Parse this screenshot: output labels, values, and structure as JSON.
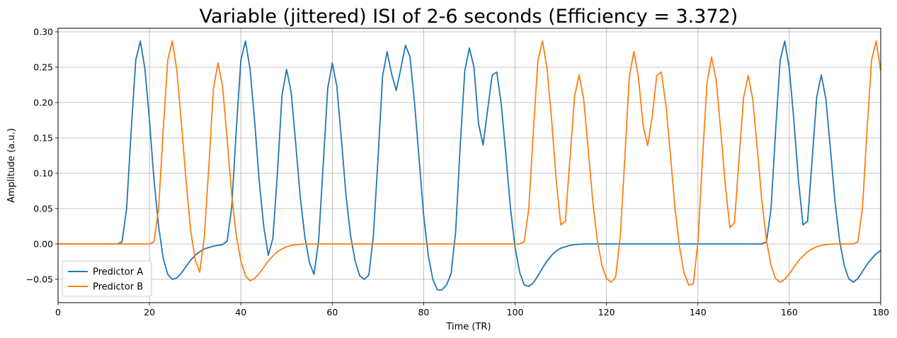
{
  "chart_data": {
    "type": "line",
    "title": "Variable (jittered) ISI of 2-6 seconds (Efficiency = 3.372)",
    "xlabel": "Time (TR)",
    "ylabel": "Amplitude (a.u.)",
    "xlim": [
      0,
      180
    ],
    "ylim": [
      -0.083,
      0.305
    ],
    "xticks": [
      0,
      20,
      40,
      60,
      80,
      100,
      120,
      140,
      160,
      180
    ],
    "yticks": [
      -0.05,
      0.0,
      0.05,
      0.1,
      0.15,
      0.2,
      0.25,
      0.3
    ],
    "ytick_labels": [
      "−0.05",
      "0.00",
      "0.05",
      "0.10",
      "0.15",
      "0.20",
      "0.25",
      "0.30"
    ],
    "grid": true,
    "legend_position": "lower-left",
    "series": [
      {
        "name": "Predictor A",
        "color": "#1f77b4",
        "points": [
          [
            0,
            0
          ],
          [
            13,
            0
          ],
          [
            14,
            0.003
          ],
          [
            15,
            0.05
          ],
          [
            16,
            0.16
          ],
          [
            17,
            0.26
          ],
          [
            18,
            0.287
          ],
          [
            19,
            0.248
          ],
          [
            20,
            0.175
          ],
          [
            21,
            0.09
          ],
          [
            22,
            0.025
          ],
          [
            23,
            -0.02
          ],
          [
            24,
            -0.043
          ],
          [
            25,
            -0.05
          ],
          [
            26,
            -0.048
          ],
          [
            27,
            -0.041
          ],
          [
            28,
            -0.032
          ],
          [
            29,
            -0.023
          ],
          [
            30,
            -0.016
          ],
          [
            31,
            -0.011
          ],
          [
            32,
            -0.007
          ],
          [
            33,
            -0.005
          ],
          [
            34,
            -0.003
          ],
          [
            35,
            -0.002
          ],
          [
            36,
            -0.001
          ],
          [
            37,
            0.004
          ],
          [
            38,
            0.052
          ],
          [
            39,
            0.162
          ],
          [
            40,
            0.26
          ],
          [
            41,
            0.287
          ],
          [
            42,
            0.248
          ],
          [
            43,
            0.175
          ],
          [
            44,
            0.09
          ],
          [
            45,
            0.025
          ],
          [
            46,
            -0.016
          ],
          [
            47,
            0.008
          ],
          [
            48,
            0.1
          ],
          [
            49,
            0.21
          ],
          [
            50,
            0.247
          ],
          [
            51,
            0.215
          ],
          [
            52,
            0.142
          ],
          [
            53,
            0.066
          ],
          [
            54,
            0.01
          ],
          [
            55,
            -0.026
          ],
          [
            56,
            -0.043
          ],
          [
            57,
            0.004
          ],
          [
            58,
            0.11
          ],
          [
            59,
            0.22
          ],
          [
            60,
            0.256
          ],
          [
            61,
            0.223
          ],
          [
            62,
            0.148
          ],
          [
            63,
            0.069
          ],
          [
            64,
            0.012
          ],
          [
            65,
            -0.024
          ],
          [
            66,
            -0.045
          ],
          [
            67,
            -0.05
          ],
          [
            68,
            -0.044
          ],
          [
            69,
            0.012
          ],
          [
            70,
            0.12
          ],
          [
            71,
            0.237
          ],
          [
            72,
            0.272
          ],
          [
            73,
            0.24
          ],
          [
            74,
            0.217
          ],
          [
            75,
            0.248
          ],
          [
            76,
            0.281
          ],
          [
            77,
            0.265
          ],
          [
            78,
            0.2
          ],
          [
            79,
            0.12
          ],
          [
            80,
            0.04
          ],
          [
            81,
            -0.016
          ],
          [
            82,
            -0.05
          ],
          [
            83,
            -0.065
          ],
          [
            84,
            -0.065
          ],
          [
            85,
            -0.058
          ],
          [
            86,
            -0.042
          ],
          [
            87,
            0.018
          ],
          [
            88,
            0.14
          ],
          [
            89,
            0.245
          ],
          [
            90,
            0.277
          ],
          [
            91,
            0.25
          ],
          [
            92,
            0.17
          ],
          [
            93,
            0.14
          ],
          [
            94,
            0.19
          ],
          [
            95,
            0.239
          ],
          [
            96,
            0.243
          ],
          [
            97,
            0.196
          ],
          [
            98,
            0.125
          ],
          [
            99,
            0.05
          ],
          [
            100,
            -0.005
          ],
          [
            101,
            -0.04
          ],
          [
            102,
            -0.058
          ],
          [
            103,
            -0.06
          ],
          [
            104,
            -0.055
          ],
          [
            105,
            -0.045
          ],
          [
            106,
            -0.034
          ],
          [
            107,
            -0.024
          ],
          [
            108,
            -0.016
          ],
          [
            109,
            -0.01
          ],
          [
            110,
            -0.006
          ],
          [
            111,
            -0.004
          ],
          [
            112,
            -0.002
          ],
          [
            113,
            -0.001
          ],
          [
            115,
            0
          ],
          [
            154,
            0
          ],
          [
            155,
            0.003
          ],
          [
            156,
            0.05
          ],
          [
            157,
            0.16
          ],
          [
            158,
            0.26
          ],
          [
            159,
            0.287
          ],
          [
            160,
            0.248
          ],
          [
            161,
            0.175
          ],
          [
            162,
            0.09
          ],
          [
            163,
            0.027
          ],
          [
            164,
            0.032
          ],
          [
            165,
            0.12
          ],
          [
            166,
            0.208
          ],
          [
            167,
            0.239
          ],
          [
            168,
            0.205
          ],
          [
            169,
            0.134
          ],
          [
            170,
            0.06
          ],
          [
            171,
            0.005
          ],
          [
            172,
            -0.03
          ],
          [
            173,
            -0.049
          ],
          [
            174,
            -0.054
          ],
          [
            175,
            -0.049
          ],
          [
            176,
            -0.039
          ],
          [
            177,
            -0.029
          ],
          [
            178,
            -0.021
          ],
          [
            179,
            -0.014
          ],
          [
            180,
            -0.009
          ]
        ]
      },
      {
        "name": "Predictor B",
        "color": "#ff7f0e",
        "points": [
          [
            0,
            0
          ],
          [
            20,
            0
          ],
          [
            21,
            0.003
          ],
          [
            22,
            0.05
          ],
          [
            23,
            0.16
          ],
          [
            24,
            0.26
          ],
          [
            25,
            0.287
          ],
          [
            26,
            0.245
          ],
          [
            27,
            0.17
          ],
          [
            28,
            0.09
          ],
          [
            29,
            0.02
          ],
          [
            30,
            -0.022
          ],
          [
            31,
            -0.04
          ],
          [
            32,
            0.01
          ],
          [
            33,
            0.11
          ],
          [
            34,
            0.22
          ],
          [
            35,
            0.256
          ],
          [
            36,
            0.223
          ],
          [
            37,
            0.148
          ],
          [
            38,
            0.069
          ],
          [
            39,
            0.012
          ],
          [
            40,
            -0.024
          ],
          [
            41,
            -0.045
          ],
          [
            42,
            -0.052
          ],
          [
            43,
            -0.049
          ],
          [
            44,
            -0.042
          ],
          [
            45,
            -0.033
          ],
          [
            46,
            -0.024
          ],
          [
            47,
            -0.017
          ],
          [
            48,
            -0.011
          ],
          [
            49,
            -0.007
          ],
          [
            50,
            -0.004
          ],
          [
            51,
            -0.002
          ],
          [
            52,
            -0.001
          ],
          [
            54,
            0
          ],
          [
            101,
            0
          ],
          [
            102,
            0.003
          ],
          [
            103,
            0.05
          ],
          [
            104,
            0.16
          ],
          [
            105,
            0.26
          ],
          [
            106,
            0.287
          ],
          [
            107,
            0.248
          ],
          [
            108,
            0.175
          ],
          [
            109,
            0.09
          ],
          [
            110,
            0.027
          ],
          [
            111,
            0.032
          ],
          [
            112,
            0.12
          ],
          [
            113,
            0.208
          ],
          [
            114,
            0.239
          ],
          [
            115,
            0.205
          ],
          [
            116,
            0.134
          ],
          [
            117,
            0.06
          ],
          [
            118,
            0.005
          ],
          [
            119,
            -0.03
          ],
          [
            120,
            -0.049
          ],
          [
            121,
            -0.054
          ],
          [
            122,
            -0.047
          ],
          [
            123,
            0.01
          ],
          [
            124,
            0.12
          ],
          [
            125,
            0.237
          ],
          [
            126,
            0.272
          ],
          [
            127,
            0.235
          ],
          [
            128,
            0.168
          ],
          [
            129,
            0.139
          ],
          [
            130,
            0.18
          ],
          [
            131,
            0.238
          ],
          [
            132,
            0.243
          ],
          [
            133,
            0.196
          ],
          [
            134,
            0.125
          ],
          [
            135,
            0.05
          ],
          [
            136,
            -0.005
          ],
          [
            137,
            -0.042
          ],
          [
            138,
            -0.058
          ],
          [
            139,
            -0.057
          ],
          [
            140,
            0.003
          ],
          [
            141,
            0.12
          ],
          [
            142,
            0.228
          ],
          [
            143,
            0.264
          ],
          [
            144,
            0.232
          ],
          [
            145,
            0.16
          ],
          [
            146,
            0.083
          ],
          [
            147,
            0.023
          ],
          [
            148,
            0.03
          ],
          [
            149,
            0.12
          ],
          [
            150,
            0.207
          ],
          [
            151,
            0.238
          ],
          [
            152,
            0.205
          ],
          [
            153,
            0.134
          ],
          [
            154,
            0.06
          ],
          [
            155,
            0.005
          ],
          [
            156,
            -0.03
          ],
          [
            157,
            -0.049
          ],
          [
            158,
            -0.054
          ],
          [
            159,
            -0.05
          ],
          [
            160,
            -0.042
          ],
          [
            161,
            -0.033
          ],
          [
            162,
            -0.024
          ],
          [
            163,
            -0.017
          ],
          [
            164,
            -0.011
          ],
          [
            165,
            -0.007
          ],
          [
            166,
            -0.004
          ],
          [
            167,
            -0.002
          ],
          [
            168,
            -0.001
          ],
          [
            170,
            0
          ],
          [
            174,
            0
          ],
          [
            175,
            0.003
          ],
          [
            176,
            0.05
          ],
          [
            177,
            0.16
          ],
          [
            178,
            0.26
          ],
          [
            179,
            0.287
          ],
          [
            180,
            0.245
          ]
        ]
      }
    ]
  }
}
